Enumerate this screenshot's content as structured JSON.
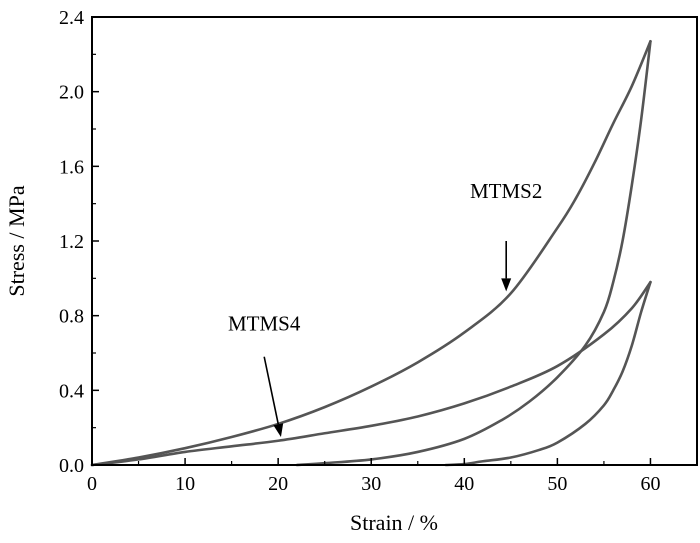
{
  "chart_data": {
    "type": "line",
    "title": "",
    "xlabel": "Strain / %",
    "ylabel": "Stress / MPa",
    "xlim": [
      0,
      65
    ],
    "ylim": [
      0,
      2.4
    ],
    "xticks": [
      0,
      10,
      20,
      30,
      40,
      50,
      60
    ],
    "xtick_labels": [
      "0",
      "10",
      "20",
      "30",
      "40",
      "50",
      "60"
    ],
    "yticks": [
      0,
      0.4,
      0.8,
      1.2,
      1.6,
      2.0,
      2.4
    ],
    "ytick_labels": [
      "0.0",
      "0.4",
      "0.8",
      "1.2",
      "1.6",
      "2.0",
      "2.4"
    ],
    "grid": false,
    "line_color": "#555555",
    "series": [
      {
        "name": "MTMS2",
        "loading": {
          "x": [
            0,
            5,
            10,
            15,
            20,
            25,
            30,
            35,
            40,
            45,
            50,
            52,
            54,
            56,
            58,
            60
          ],
          "y": [
            0,
            0.04,
            0.09,
            0.15,
            0.22,
            0.31,
            0.42,
            0.55,
            0.71,
            0.92,
            1.27,
            1.43,
            1.62,
            1.83,
            2.03,
            2.27
          ]
        },
        "unloading": {
          "x": [
            60,
            59,
            58,
            57,
            56,
            55,
            53,
            50,
            47,
            44,
            40,
            35,
            30,
            25,
            22
          ],
          "y": [
            2.27,
            1.85,
            1.5,
            1.2,
            0.98,
            0.82,
            0.64,
            0.47,
            0.34,
            0.24,
            0.14,
            0.07,
            0.03,
            0.01,
            0
          ]
        }
      },
      {
        "name": "MTMS4",
        "loading": {
          "x": [
            0,
            5,
            10,
            15,
            20,
            25,
            30,
            35,
            40,
            45,
            50,
            55,
            58,
            60
          ],
          "y": [
            0,
            0.03,
            0.07,
            0.1,
            0.13,
            0.17,
            0.21,
            0.26,
            0.33,
            0.42,
            0.53,
            0.7,
            0.84,
            0.98
          ]
        },
        "unloading": {
          "x": [
            60,
            59,
            58,
            57,
            56,
            55,
            53,
            50,
            48,
            45,
            42,
            40,
            38
          ],
          "y": [
            0.98,
            0.82,
            0.64,
            0.5,
            0.4,
            0.32,
            0.22,
            0.12,
            0.08,
            0.04,
            0.02,
            0.005,
            0
          ]
        }
      }
    ],
    "annotations": [
      {
        "text": "MTMS2",
        "label_x": 44.5,
        "label_y": 1.43,
        "arrow_from": [
          44.5,
          1.2
        ],
        "arrow_to": [
          44.5,
          0.93
        ]
      },
      {
        "text": "MTMS4",
        "label_x": 18.5,
        "label_y": 0.72,
        "arrow_from": [
          18.5,
          0.58
        ],
        "arrow_to": [
          20.3,
          0.15
        ]
      }
    ]
  }
}
